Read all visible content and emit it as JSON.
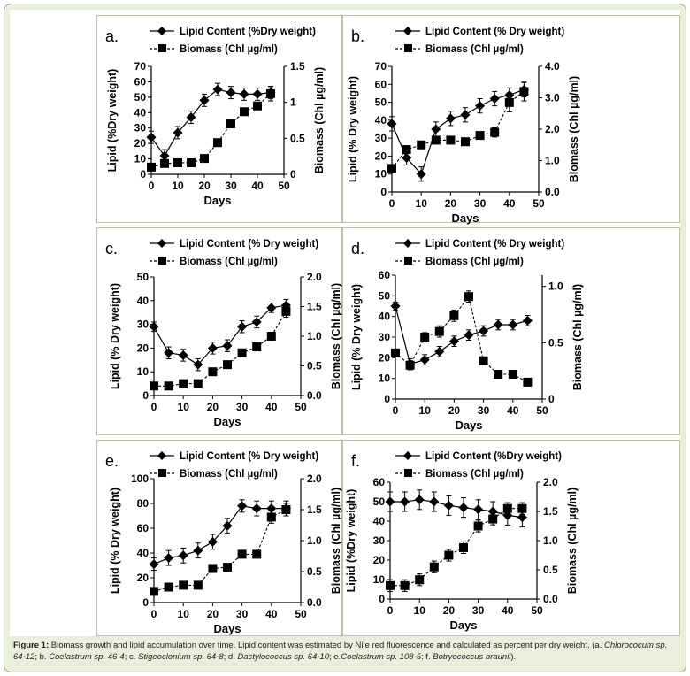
{
  "colors": {
    "border": "#8fa873",
    "background": "#e9eedd",
    "ink": "#000000"
  },
  "caption": {
    "label": "Figure 1:",
    "text": " Biomass growth and lipid accumulation over time. Lipid content was estimated by Nile red fluorescence and calculated as percent per dry weight. (a. ",
    "species": [
      {
        "name": "Chlorococum sp. 64-12",
        "sep": "; b. "
      },
      {
        "name": "Coelastrum sp. 46-4",
        "sep": "; c. "
      },
      {
        "name": "Stigeoclonium sp. 64-8",
        "sep": "; d. "
      },
      {
        "name": "Dactylococcus sp. 64-10",
        "sep": "; e."
      },
      {
        "name": "Coelastrum sp. 108-5",
        "sep": "; f. "
      },
      {
        "name": "Botryococcus braunii",
        "sep": ")."
      }
    ]
  },
  "chart_data": [
    {
      "panel": "a.",
      "type": "line",
      "legend_lipid": "Lipid Content (%Dry weight)",
      "legend_biomass": "Biomass (Chl µg/ml)",
      "xlabel": "Days",
      "ylabel": "Lipid (%Dry weight)",
      "y2label": "Biomass (Chl µg/ml)",
      "xlim": [
        0,
        50
      ],
      "xticks": [
        0,
        10,
        20,
        30,
        40,
        50
      ],
      "ylim": [
        0,
        70
      ],
      "yticks": [
        0,
        10,
        20,
        30,
        40,
        50,
        60,
        70
      ],
      "y2lim": [
        0,
        1.5
      ],
      "y2ticks": [
        "0",
        "0.5",
        "1",
        "1.5"
      ],
      "y2tickvals": [
        0,
        0.5,
        1,
        1.5
      ],
      "x": [
        0,
        5,
        10,
        15,
        20,
        25,
        30,
        35,
        40,
        45
      ],
      "lipid": [
        24,
        12,
        27,
        37,
        48,
        55,
        53,
        52,
        52,
        53
      ],
      "lipid_err": [
        4,
        4,
        4,
        4,
        4,
        4,
        4,
        4,
        4,
        4
      ],
      "biomass": [
        0.1,
        0.15,
        0.16,
        0.16,
        0.22,
        0.44,
        0.7,
        0.87,
        0.95,
        1.12
      ],
      "biomass_err": [
        0,
        0,
        0,
        0,
        0,
        0,
        0.05,
        0.05,
        0.05,
        0.1
      ]
    },
    {
      "panel": "b.",
      "type": "line",
      "legend_lipid": "Lipid Content (% Dry weight)",
      "legend_biomass": "Biomass (Chl µg/ml)",
      "xlabel": "Days",
      "ylabel": "Lipid (% Dry weight)",
      "y2label": "Biomass (Chl µg/ml)",
      "xlim": [
        0,
        50
      ],
      "xticks": [
        0,
        10,
        20,
        30,
        40,
        50
      ],
      "ylim": [
        0,
        70
      ],
      "yticks": [
        0,
        10,
        20,
        30,
        40,
        50,
        60,
        70
      ],
      "y2lim": [
        0,
        4.0
      ],
      "y2ticks": [
        "0.0",
        "1.0",
        "2.0",
        "3.0",
        "4.0"
      ],
      "y2tickvals": [
        0,
        1,
        2,
        3,
        4
      ],
      "x": [
        0,
        5,
        10,
        15,
        20,
        25,
        30,
        35,
        40,
        45
      ],
      "lipid": [
        38,
        19,
        10,
        35,
        41,
        43,
        48,
        52,
        54,
        57
      ],
      "lipid_err": [
        4,
        4,
        4,
        4,
        4,
        4,
        4,
        4,
        4,
        4
      ],
      "biomass": [
        0.75,
        1.35,
        1.5,
        1.65,
        1.65,
        1.6,
        1.8,
        1.9,
        2.85,
        3.2
      ],
      "biomass_err": [
        0,
        0,
        0.1,
        0.1,
        0.1,
        0.1,
        0.1,
        0.15,
        0.3,
        0.3
      ]
    },
    {
      "panel": "c.",
      "type": "line",
      "legend_lipid": "Lipid Content (% Dry weight)",
      "legend_biomass": "Biomass (Chl µg/ml)",
      "xlabel": "Days",
      "ylabel": "Lipid (% Dry weight)",
      "y2label": "Biomass (Chl µg/ml)",
      "xlim": [
        0,
        50
      ],
      "xticks": [
        0,
        10,
        20,
        30,
        40,
        50
      ],
      "ylim": [
        0,
        50
      ],
      "yticks": [
        0,
        10,
        20,
        30,
        40,
        50
      ],
      "y2lim": [
        0,
        2.0
      ],
      "y2ticks": [
        "0.0",
        "0.5",
        "1.0",
        "1.5",
        "2.0"
      ],
      "y2tickvals": [
        0,
        0.5,
        1,
        1.5,
        2
      ],
      "x": [
        0,
        5,
        10,
        15,
        20,
        25,
        30,
        35,
        40,
        45
      ],
      "lipid": [
        29,
        18,
        17,
        13,
        20,
        21,
        29,
        31,
        37,
        38
      ],
      "lipid_err": [
        2,
        2.5,
        2.5,
        2.5,
        2.5,
        2.5,
        2.5,
        2.5,
        2,
        2.5
      ],
      "biomass": [
        0.16,
        0.16,
        0.2,
        0.2,
        0.4,
        0.52,
        0.72,
        0.82,
        1.0,
        1.42
      ],
      "biomass_err": [
        0,
        0,
        0,
        0,
        0,
        0,
        0,
        0,
        0,
        0.1
      ]
    },
    {
      "panel": "d.",
      "type": "line",
      "legend_lipid": "Lipid Content (% Dry weight)",
      "legend_biomass": "Biomass (Chl µg/ml)",
      "xlabel": "Days",
      "ylabel": "Lipid (% Dry weight)",
      "y2label": "Biomass (Chl µg/ml)",
      "xlim": [
        0,
        50
      ],
      "xticks": [
        0,
        10,
        20,
        30,
        40,
        50
      ],
      "ylim": [
        0,
        60
      ],
      "yticks": [
        0,
        10,
        20,
        30,
        40,
        50,
        60
      ],
      "y2lim": [
        0,
        1.1
      ],
      "y2ticks": [
        "0",
        "0.5",
        "1.0"
      ],
      "y2tickvals": [
        0,
        0.5,
        1.0
      ],
      "x": [
        0,
        5,
        10,
        15,
        20,
        25,
        30,
        35,
        40,
        45
      ],
      "lipid": [
        45,
        17,
        19,
        23,
        28,
        31,
        33,
        36,
        36,
        38
      ],
      "lipid_err": [
        2,
        2.5,
        2.5,
        2.5,
        2.5,
        2.5,
        2.5,
        2.5,
        2.5,
        2.5
      ],
      "biomass": [
        0.41,
        0.3,
        0.55,
        0.6,
        0.74,
        0.91,
        0.34,
        0.22,
        0.22,
        0.15
      ],
      "biomass_err": [
        0,
        0.04,
        0.04,
        0.05,
        0.05,
        0.05,
        0,
        0,
        0,
        0
      ]
    },
    {
      "panel": "e.",
      "type": "line",
      "legend_lipid": "Lipid Content (% Dry weight)",
      "legend_biomass": "Biomass (Chl µg/ml)",
      "xlabel": "Days",
      "ylabel": "Lipid (% Dry weight)",
      "y2label": "Biomass (Chl µg/ml)",
      "xlim": [
        0,
        50
      ],
      "xticks": [
        0,
        10,
        20,
        30,
        40,
        50
      ],
      "ylim": [
        0,
        100
      ],
      "yticks": [
        0,
        20,
        40,
        60,
        80,
        100
      ],
      "y2lim": [
        0,
        2.0
      ],
      "y2ticks": [
        "0.0",
        "0.5",
        "1.0",
        "1.5",
        "2.0"
      ],
      "y2tickvals": [
        0,
        0.5,
        1,
        1.5,
        2
      ],
      "x": [
        0,
        5,
        10,
        15,
        20,
        25,
        30,
        35,
        40,
        45
      ],
      "lipid": [
        31,
        36,
        38,
        42,
        49,
        62,
        78,
        76,
        76,
        76
      ],
      "lipid_err": [
        5,
        6,
        6,
        6,
        6,
        6,
        5,
        6,
        6,
        6
      ],
      "biomass": [
        0.18,
        0.25,
        0.28,
        0.28,
        0.55,
        0.57,
        0.78,
        0.78,
        1.38,
        1.5
      ],
      "biomass_err": [
        0,
        0,
        0,
        0,
        0,
        0,
        0,
        0,
        0.1,
        0.1
      ]
    },
    {
      "panel": "f.",
      "type": "line",
      "legend_lipid": "Lipid Content (%Dry weight)",
      "legend_biomass": "Biomass (Chl µg/ml)",
      "xlabel": "Days",
      "ylabel": "Lipid (%Dry weight)",
      "y2label": "Biomass (Chl µg/ml)",
      "xlim": [
        0,
        50
      ],
      "xticks": [
        0,
        10,
        20,
        30,
        40,
        50
      ],
      "ylim": [
        0,
        60
      ],
      "yticks": [
        0,
        10,
        20,
        30,
        40,
        50,
        60
      ],
      "y2lim": [
        0,
        2.0
      ],
      "y2ticks": [
        "0.0",
        "0.5",
        "1.0",
        "1.5",
        "2.0"
      ],
      "y2tickvals": [
        0,
        0.5,
        1,
        1.5,
        2
      ],
      "x": [
        0,
        5,
        10,
        15,
        20,
        25,
        30,
        35,
        40,
        45
      ],
      "lipid": [
        50,
        50,
        51,
        50,
        48,
        47,
        46,
        45,
        43,
        42
      ],
      "lipid_err": [
        5,
        5,
        5,
        5,
        5,
        5,
        5,
        5,
        5,
        5
      ],
      "biomass": [
        0.23,
        0.23,
        0.33,
        0.55,
        0.75,
        0.88,
        1.25,
        1.37,
        1.55,
        1.55
      ],
      "biomass_err": [
        0.1,
        0.1,
        0.1,
        0.1,
        0.1,
        0.1,
        0.1,
        0.1,
        0.1,
        0.1
      ]
    }
  ]
}
